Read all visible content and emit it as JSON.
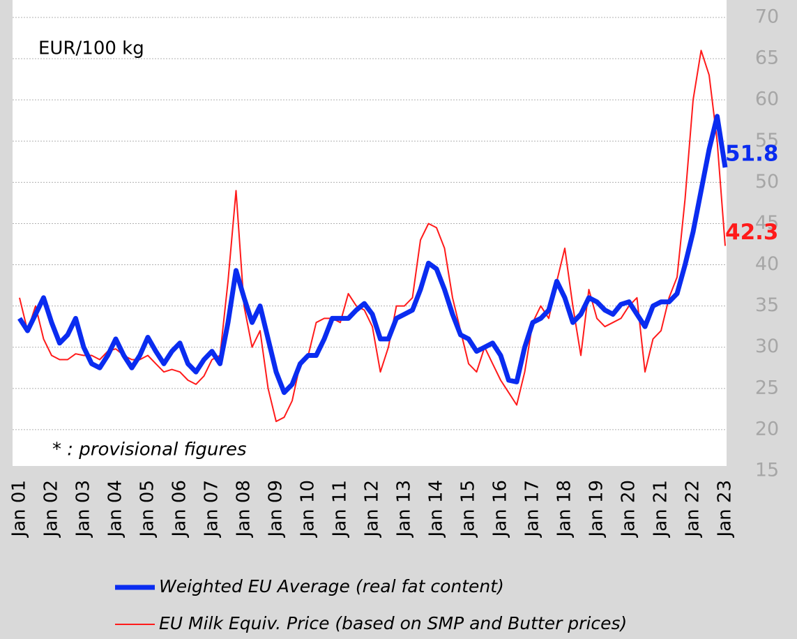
{
  "chart_data": {
    "type": "line",
    "annotations": [
      "EUR/100 kg",
      "* : provisional figures"
    ],
    "categories": [
      "Jan 01",
      null,
      null,
      null,
      "Jan 02",
      null,
      null,
      null,
      "Jan 03",
      null,
      null,
      null,
      "Jan 04",
      null,
      null,
      null,
      "Jan 05",
      null,
      null,
      null,
      "Jan 06",
      null,
      null,
      null,
      "Jan 07",
      null,
      null,
      null,
      "Jan 08",
      null,
      null,
      null,
      "Jan 09",
      null,
      null,
      null,
      "Jan 10",
      null,
      null,
      null,
      "Jan 11",
      null,
      null,
      null,
      "Jan 12",
      null,
      null,
      null,
      "Jan 13",
      null,
      null,
      null,
      "Jan 14",
      null,
      null,
      null,
      "Jan 15",
      null,
      null,
      null,
      "Jan 16",
      null,
      null,
      null,
      "Jan 17",
      null,
      null,
      null,
      "Jan 18",
      null,
      null,
      null,
      "Jan 19",
      null,
      null,
      null,
      "Jan 20",
      null,
      null,
      null,
      "Jan 21",
      null,
      null,
      null,
      "Jan 22",
      null,
      null,
      null,
      "Jan 23"
    ],
    "series": [
      {
        "name": "Weighted EU Average (real fat content)",
        "color": "#0a2cf0",
        "values": [
          33.5,
          32,
          34,
          36,
          33,
          30.5,
          31.5,
          33.5,
          30,
          28,
          27.5,
          29,
          31,
          29,
          27.5,
          29,
          31.2,
          29.5,
          28,
          29.5,
          30.5,
          28,
          27,
          28.5,
          29.5,
          28,
          33,
          39.3,
          36,
          33,
          35,
          31,
          27,
          24.5,
          25.5,
          28,
          29,
          29,
          31,
          33.5,
          33.5,
          33.5,
          34.5,
          35.3,
          34,
          31,
          31,
          33.5,
          34,
          34.5,
          37,
          40.2,
          39.5,
          37,
          34,
          31.5,
          31,
          29.5,
          30,
          30.5,
          29,
          26,
          25.8,
          30,
          33,
          33.5,
          34.5,
          38,
          36,
          33,
          34,
          36,
          35.5,
          34.5,
          34,
          35.2,
          35.5,
          34,
          32.5,
          35,
          35.5,
          35.5,
          36.5,
          40,
          44,
          49,
          54,
          58,
          51.8
        ]
      },
      {
        "name": "EU Milk Equiv. Price (based on SMP and Butter prices)",
        "color": "#ff1a1a",
        "values": [
          36,
          32,
          35,
          31,
          29,
          28.5,
          28.5,
          29.2,
          29,
          29,
          28.5,
          29.5,
          29.8,
          29,
          28.5,
          28.5,
          29,
          28,
          27,
          27.3,
          27,
          26,
          25.5,
          26.5,
          28.5,
          29,
          38,
          49,
          35,
          30,
          32,
          25,
          21,
          21.5,
          23.5,
          28,
          29,
          33,
          33.5,
          33.5,
          33,
          36.5,
          35,
          34.5,
          32.5,
          27,
          30,
          35,
          35,
          36,
          43,
          45,
          44.5,
          42,
          36,
          32,
          28,
          27,
          30,
          28,
          26,
          24.5,
          23,
          27,
          33,
          35,
          33.5,
          38,
          42,
          35,
          29,
          37,
          33.5,
          32.5,
          33,
          33.5,
          35,
          36,
          27,
          31,
          32,
          36,
          38.5,
          48,
          60,
          66,
          63,
          55,
          42.3
        ]
      }
    ],
    "ylim": [
      15,
      70
    ],
    "yticks": [
      15,
      20,
      25,
      30,
      35,
      40,
      45,
      50,
      55,
      60,
      65,
      70
    ],
    "grid": true
  }
}
